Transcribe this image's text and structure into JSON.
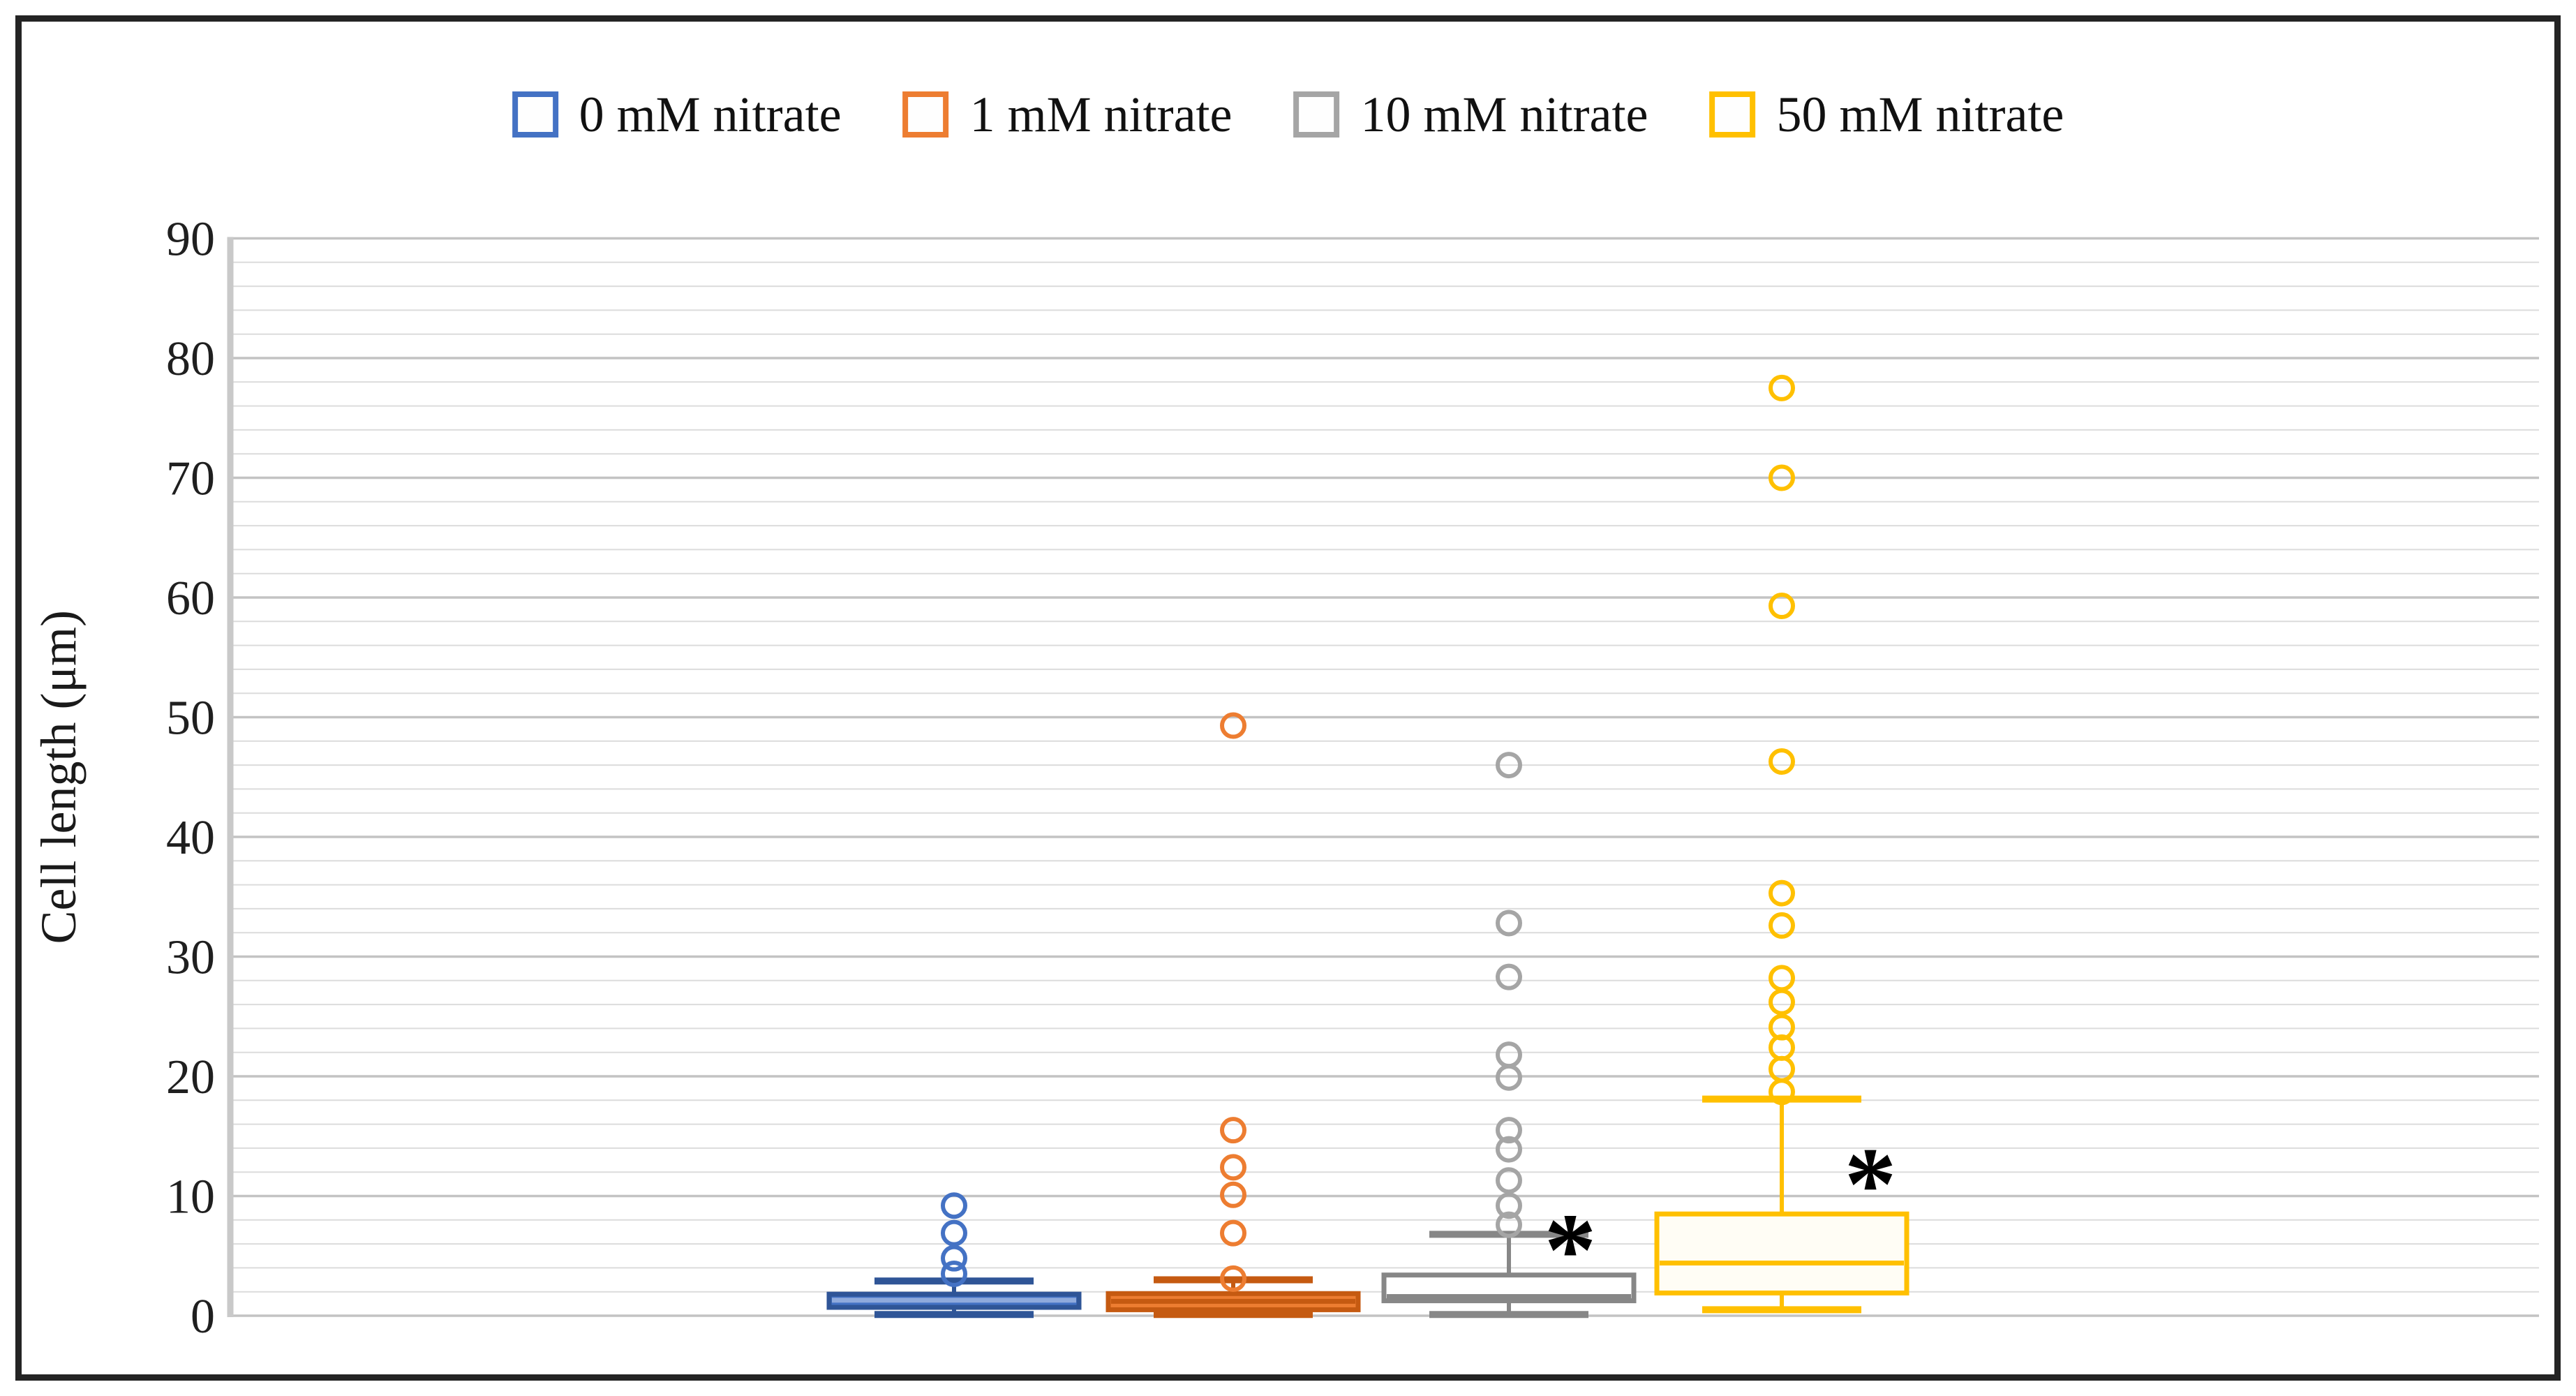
{
  "figure": {
    "background": "#ffffff",
    "frame_color": "#242424"
  },
  "legend": {
    "items": [
      {
        "label": "0 mM nitrate",
        "color": "#4472C4"
      },
      {
        "label": "1 mM nitrate",
        "color": "#ED7D31"
      },
      {
        "label": "10 mM nitrate",
        "color": "#A5A5A5"
      },
      {
        "label": "50 mM nitrate",
        "color": "#FFC000"
      }
    ]
  },
  "y_axis": {
    "title": "Cell length (μm)",
    "tick_labels": [
      "0",
      "10",
      "20",
      "30",
      "40",
      "50",
      "60",
      "70",
      "80",
      "90"
    ],
    "min": 0,
    "max": 90,
    "major_step": 10,
    "minor_step": 2,
    "tick_color": "#1f1f1f"
  },
  "chart_data": {
    "type": "boxplot",
    "title": "",
    "xlabel": "",
    "ylabel": "Cell length (μm)",
    "ylim": [
      0,
      90
    ],
    "grid": {
      "minor_every": 2,
      "major_every": 10,
      "minor_color": "#DCDCDC",
      "major_color": "#C3C3C3",
      "vertical_gridlines": false
    },
    "legend_position": "top-center",
    "categories": [
      "0 mM nitrate",
      "1 mM nitrate",
      "10 mM nitrate",
      "50 mM nitrate"
    ],
    "series": [
      {
        "name": "0 mM nitrate",
        "color": "#4472C4",
        "box_fill": "#4472C4",
        "border_color": "#2F5597",
        "median_color": "#8FAADC",
        "box_filled": true,
        "whisker_low": 0.1,
        "q1": 0.7,
        "median": 1.3,
        "q3": 1.8,
        "whisker_high": 2.9,
        "outliers": [
          3.5,
          4.8,
          6.9,
          9.2
        ],
        "annotation": ""
      },
      {
        "name": "1 mM nitrate",
        "color": "#ED7D31",
        "box_fill": "#ED7D31",
        "border_color": "#C55A11",
        "median_color": "#C55A11",
        "box_filled": true,
        "whisker_low": 0.1,
        "q1": 0.5,
        "median": 1.2,
        "q3": 1.85,
        "whisker_high": 3.0,
        "outliers": [
          3.1,
          6.9,
          10.1,
          12.4,
          15.5,
          49.3
        ],
        "annotation": ""
      },
      {
        "name": "10 mM nitrate",
        "color": "#A5A5A5",
        "box_fill": "#FFFFFF",
        "border_color": "#878787",
        "median_color": "#878787",
        "box_filled": false,
        "whisker_low": 0.1,
        "q1": 1.25,
        "median": 1.6,
        "q3": 3.4,
        "whisker_high": 6.8,
        "outliers": [
          7.6,
          9.2,
          11.3,
          13.9,
          15.5,
          19.9,
          21.8,
          28.3,
          32.8,
          46.0
        ],
        "annotation": "*"
      },
      {
        "name": "50 mM nitrate",
        "color": "#FFC000",
        "box_fill": "#FFFDF5",
        "border_color": "#FFC000",
        "median_color": "#FFC000",
        "box_filled": false,
        "whisker_low": 0.5,
        "q1": 1.9,
        "median": 4.4,
        "q3": 8.5,
        "whisker_high": 18.1,
        "outliers": [
          18.7,
          20.6,
          22.4,
          24.1,
          26.2,
          28.2,
          32.6,
          35.3,
          46.3,
          59.3,
          70.0,
          77.5
        ],
        "annotation": "*"
      }
    ],
    "annotation_color": "#000000"
  }
}
